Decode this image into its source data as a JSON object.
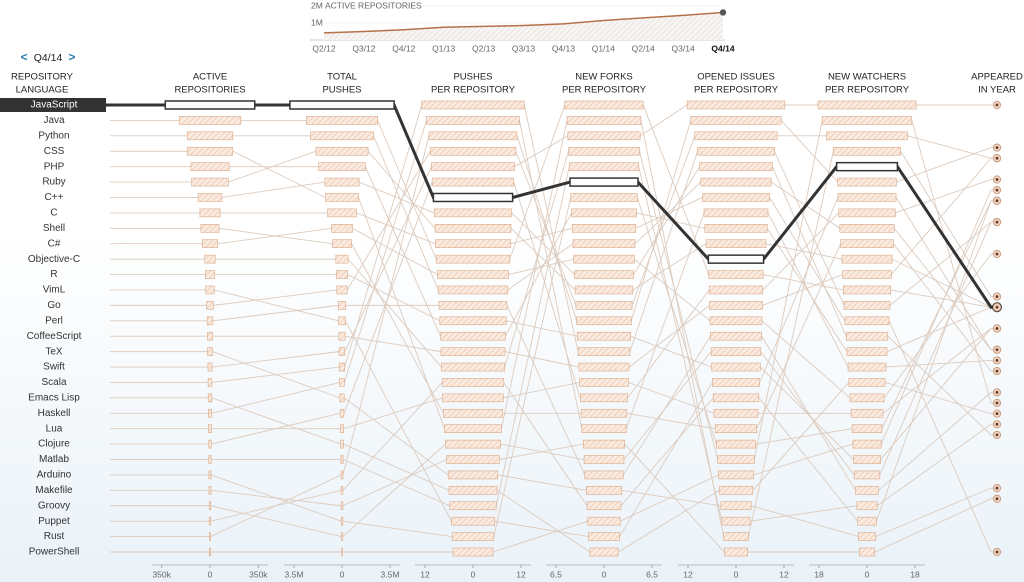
{
  "nav": {
    "prev": "<",
    "label": "Q4/14",
    "next": ">"
  },
  "chart_data": [
    {
      "type": "area",
      "title": "ACTIVE REPOSITORIES",
      "color": "#b5714a",
      "categories": [
        "Q2/12",
        "Q3/12",
        "Q4/12",
        "Q1/13",
        "Q2/13",
        "Q3/13",
        "Q4/13",
        "Q1/14",
        "Q2/14",
        "Q3/14",
        "Q4/14"
      ],
      "values": [
        420000,
        500000,
        600000,
        750000,
        800000,
        850000,
        950000,
        1150000,
        1300000,
        1450000,
        1620000
      ],
      "ylim": [
        0,
        2000000
      ],
      "yticks": [
        {
          "value": 1000000,
          "label": "1M"
        },
        {
          "value": 2000000,
          "label": "2M"
        }
      ]
    },
    {
      "type": "parallel",
      "label_header": [
        "REPOSITORY",
        "LANGUAGE"
      ],
      "highlight": "JavaScript",
      "bar_color": "#fbeadf",
      "bar_stroke": "#d9a987",
      "line_color": "#dccbbe",
      "highlight_color": "#333333",
      "categories": [
        "JavaScript",
        "Java",
        "Python",
        "CSS",
        "PHP",
        "Ruby",
        "C++",
        "C",
        "Shell",
        "C#",
        "Objective-C",
        "R",
        "VimL",
        "Go",
        "Perl",
        "CoffeeScript",
        "TeX",
        "Swift",
        "Scala",
        "Emacs Lisp",
        "Haskell",
        "Lua",
        "Clojure",
        "Matlab",
        "Arduino",
        "Makefile",
        "Groovy",
        "Puppet",
        "Rust",
        "PowerShell"
      ],
      "columns": [
        {
          "name": [
            "ACTIVE",
            "REPOSITORIES"
          ],
          "xlim": [
            -420000,
            420000
          ],
          "xticks": [
            {
              "value": -350000,
              "label": "350k"
            },
            0,
            {
              "value": 350000,
              "label": "350k"
            }
          ],
          "values": [
            323938,
            222852,
            164852,
            164585,
            138771,
            132848,
            86505,
            73075,
            65670,
            56062,
            37713,
            33314,
            30670,
            23839,
            21000,
            19000,
            17500,
            15000,
            14000,
            13000,
            12000,
            11500,
            9000,
            8500,
            8000,
            7500,
            6000,
            5800,
            5000,
            4500
          ]
        },
        {
          "name": [
            "TOTAL",
            "PUSHES"
          ],
          "xlim": [
            -4230000,
            4230000
          ],
          "xticks": [
            {
              "value": -3500000,
              "label": "3.5M"
            },
            0,
            {
              "value": 3500000,
              "label": "3.5M"
            }
          ],
          "values": [
            3800000,
            2600000,
            2300000,
            1200000,
            1700000,
            1900000,
            1250000,
            1050000,
            700000,
            760000,
            450000,
            420000,
            250000,
            380000,
            270000,
            230000,
            160000,
            210000,
            200000,
            110000,
            170000,
            120000,
            140000,
            80000,
            60000,
            65000,
            58000,
            66000,
            70000,
            30000
          ]
        },
        {
          "name": [
            "PUSHES",
            "PER REPOSITORY"
          ],
          "xlim": [
            -14.5,
            14.5
          ],
          "xticks": [
            {
              "value": -12,
              "label": "12"
            },
            0,
            12
          ],
          "values": [
            9.9,
            9.2,
            8.7,
            7.1,
            8.1,
            9.5,
            9.7,
            9.4,
            7.4,
            8.9,
            7.9,
            8.3,
            5.4,
            10.7,
            8.5,
            8.0,
            6.2,
            10.4,
            12.8,
            6.0,
            11.6,
            7.6,
            10.2,
            5.8,
            5.2,
            6.6,
            6.9,
            7.7,
            11.0,
            5.0
          ]
        },
        {
          "name": [
            "NEW FORKS",
            "PER REPOSITORY"
          ],
          "xlim": [
            -7.85,
            7.85
          ],
          "xticks": [
            {
              "value": -6.5,
              "label": "6.5"
            },
            0,
            6.5
          ],
          "values": [
            4.6,
            5.3,
            4.2,
            5.0,
            4.4,
            3.9,
            4.0,
            4.3,
            3.1,
            4.1,
            4.8,
            3.6,
            2.1,
            3.8,
            2.6,
            3.4,
            2.4,
            4.9,
            3.5,
            1.9,
            3.0,
            3.3,
            3.2,
            4.7,
            4.5,
            2.8,
            2.7,
            2.3,
            3.7,
            2.2
          ]
        },
        {
          "name": [
            "OPENED ISSUES",
            "PER REPOSITORY"
          ],
          "xlim": [
            -14.5,
            14.5
          ],
          "xticks": [
            {
              "value": -12,
              "label": "12"
            },
            0,
            12
          ],
          "values": [
            6.9,
            6.8,
            8.8,
            3.1,
            7.8,
            7.5,
            9.1,
            8.4,
            5.2,
            6.5,
            4.6,
            6.1,
            5.9,
            10.3,
            6.4,
            6.6,
            3.8,
            12.2,
            9.6,
            4.2,
            8.0,
            5.5,
            6.7,
            3.5,
            4.9,
            2.9,
            6.2,
            5.7,
            11.3,
            4.4
          ]
        },
        {
          "name": [
            "NEW WATCHERS",
            "PER REPOSITORY"
          ],
          "xlim": [
            -21.75,
            21.75
          ],
          "xticks": [
            {
              "value": -18,
              "label": "18"
            },
            0,
            18
          ],
          "values": [
            11.4,
            8.9,
            10.2,
            12.6,
            7.5,
            9.4,
            7.8,
            8.3,
            9.9,
            6.4,
            16.8,
            5.1,
            10.9,
            15.2,
            4.3,
            9.1,
            3.2,
            18.4,
            8.6,
            6.8,
            7.1,
            6.0,
            10.6,
            3.8,
            5.6,
            2.9,
            4.8,
            3.5,
            11.0,
            5.3
          ]
        }
      ],
      "year": {
        "name": [
          "APPEARED",
          "IN YEAR"
        ],
        "ylim": [
          2014,
          1972
        ],
        "values": [
          1995,
          1995,
          1991,
          1996,
          1995,
          1995,
          1983,
          1972,
          1989,
          2000,
          1986,
          1993,
          1991,
          2009,
          1987,
          2009,
          1978,
          2014,
          2003,
          1985,
          1990,
          1993,
          2007,
          1984,
          2005,
          1977,
          2003,
          2005,
          2010,
          2006
        ]
      }
    }
  ]
}
